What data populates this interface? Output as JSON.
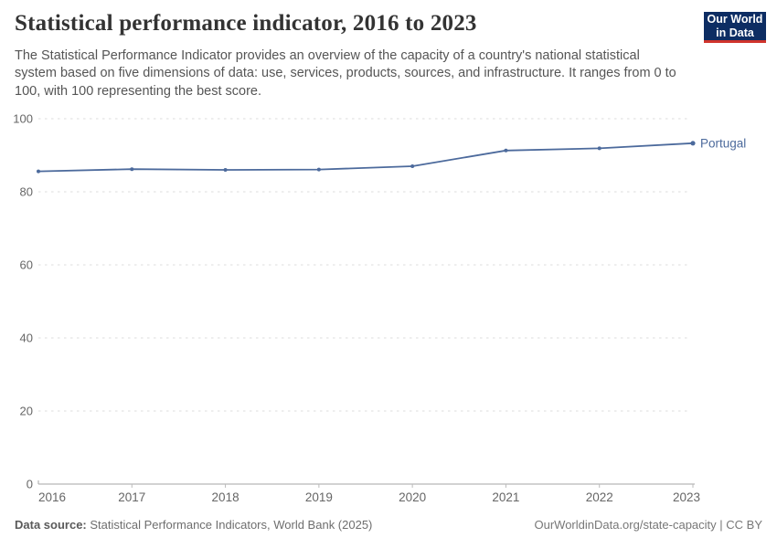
{
  "header": {
    "title": "Statistical performance indicator, 2016 to 2023",
    "subtitle": "The Statistical Performance Indicator provides an overview of the capacity of a country's national statistical system based on five dimensions of data: use, services, products, sources, and infrastructure. It ranges from 0 to 100, with 100 representing the best score.",
    "logo": {
      "line1": "Our World",
      "line2": "in Data",
      "bg_color": "#0d2d63",
      "accent_color": "#d0342c"
    }
  },
  "chart_data": {
    "type": "line",
    "title": "Statistical performance indicator, 2016 to 2023",
    "x": [
      2016,
      2017,
      2018,
      2019,
      2020,
      2021,
      2022,
      2023
    ],
    "x_tick_labels": [
      "2016",
      "2017",
      "2018",
      "2019",
      "2020",
      "2021",
      "2022",
      "2023"
    ],
    "series": [
      {
        "name": "Portugal",
        "color": "#4C6A9C",
        "values": [
          85.6,
          86.2,
          86.0,
          86.1,
          87.0,
          91.3,
          91.9,
          93.3
        ]
      }
    ],
    "xlabel": "",
    "ylabel": "",
    "ylim": [
      0,
      100
    ],
    "yticks": [
      0,
      20,
      40,
      60,
      80,
      100
    ],
    "ytick_labels": [
      "0",
      "20",
      "40",
      "60",
      "80",
      "100"
    ],
    "grid": true,
    "gridline_color": "#dcdcdc",
    "axis_color": "#a5a5a5",
    "tick_label_color": "#666666",
    "legend_position": "end-of-line-label"
  },
  "footer": {
    "source_label": "Data source:",
    "source_text": "Statistical Performance Indicators, World Bank (2025)",
    "attribution": "OurWorldinData.org/state-capacity | CC BY"
  }
}
